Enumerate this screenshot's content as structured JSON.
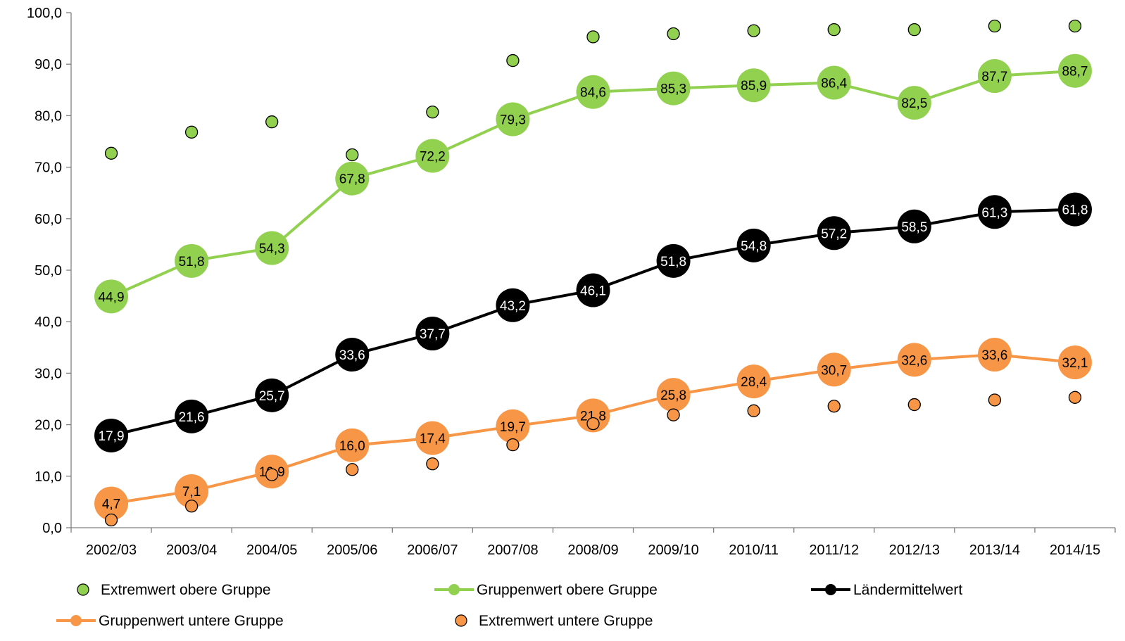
{
  "chart_data": {
    "type": "line",
    "categories": [
      "2002/03",
      "2003/04",
      "2004/05",
      "2005/06",
      "2006/07",
      "2007/08",
      "2008/09",
      "2009/10",
      "2010/11",
      "2011/12",
      "2012/13",
      "2013/14",
      "2014/15"
    ],
    "ylim": [
      0,
      100
    ],
    "yticks": [
      0,
      10,
      20,
      30,
      40,
      50,
      60,
      70,
      80,
      90,
      100
    ],
    "ytick_labels": [
      "0,0",
      "10,0",
      "20,0",
      "30,0",
      "40,0",
      "50,0",
      "60,0",
      "70,0",
      "80,0",
      "90,0",
      "100,0"
    ],
    "grid": false,
    "legend_position": "bottom",
    "series": [
      {
        "key": "extreme_upper",
        "name": "Extremwert obere Gruppe",
        "kind": "markers",
        "color": "#92d050",
        "values": [
          72.7,
          76.8,
          78.8,
          72.4,
          80.7,
          90.7,
          95.3,
          95.9,
          96.5,
          96.7,
          96.7,
          97.4,
          97.4
        ]
      },
      {
        "key": "group_upper",
        "name": "Gruppenwert obere Gruppe",
        "kind": "line",
        "color": "#92d050",
        "label_color": "#000000",
        "values": [
          44.9,
          51.8,
          54.3,
          67.8,
          72.2,
          79.3,
          84.6,
          85.3,
          85.9,
          86.4,
          82.5,
          87.7,
          88.7
        ],
        "labels": [
          "44,9",
          "51,8",
          "54,3",
          "67,8",
          "72,2",
          "79,3",
          "84,6",
          "85,3",
          "85,9",
          "86,4",
          "82,5",
          "87,7",
          "88,7"
        ]
      },
      {
        "key": "country_mean",
        "name": "Ländermittelwert",
        "kind": "line",
        "color": "#000000",
        "label_color": "#ffffff",
        "values": [
          17.9,
          21.6,
          25.7,
          33.6,
          37.7,
          43.2,
          46.1,
          51.8,
          54.8,
          57.2,
          58.5,
          61.3,
          61.8
        ],
        "labels": [
          "17,9",
          "21,6",
          "25,7",
          "33,6",
          "37,7",
          "43,2",
          "46,1",
          "51,8",
          "54,8",
          "57,2",
          "58,5",
          "61,3",
          "61,8"
        ]
      },
      {
        "key": "group_lower",
        "name": "Gruppenwert untere Gruppe",
        "kind": "line",
        "color": "#f79646",
        "label_color": "#000000",
        "values": [
          4.7,
          7.1,
          10.9,
          16.0,
          17.4,
          19.7,
          21.8,
          25.8,
          28.4,
          30.7,
          32.6,
          33.6,
          32.1
        ],
        "labels": [
          "4,7",
          "7,1",
          "10,9",
          "16,0",
          "17,4",
          "19,7",
          "21,8",
          "25,8",
          "28,4",
          "30,7",
          "32,6",
          "33,6",
          "32,1"
        ]
      },
      {
        "key": "extreme_lower",
        "name": "Extremwert untere Gruppe",
        "kind": "markers",
        "color": "#f79646",
        "values": [
          1.5,
          4.2,
          10.3,
          11.3,
          12.4,
          16.1,
          20.2,
          21.9,
          22.7,
          23.6,
          23.9,
          24.8,
          25.3
        ]
      }
    ],
    "legend": [
      {
        "series": "extreme_upper"
      },
      {
        "series": "group_upper"
      },
      {
        "series": "country_mean"
      },
      {
        "series": "group_lower"
      },
      {
        "series": "extreme_lower"
      }
    ]
  }
}
